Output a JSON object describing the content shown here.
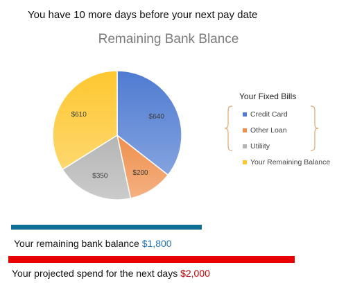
{
  "header": {
    "text": "You have 10 more days before your next pay date"
  },
  "chart_data": {
    "type": "pie",
    "title": "Remaining Bank Blance",
    "legend_title": "Your Fixed Bills",
    "legend_position": "right",
    "slices": [
      {
        "label": "Credit Card",
        "value": 640,
        "data_label": "$640",
        "color": "#4f7bd1"
      },
      {
        "label": "Other Loan",
        "value": 200,
        "data_label": "$200",
        "color": "#ef8f4d"
      },
      {
        "label": "Utiliity",
        "value": 350,
        "data_label": "$350",
        "color": "#b5b5b5"
      },
      {
        "label": "Your Remaining Balance",
        "value": 610,
        "data_label": "$610",
        "color": "#fec730"
      }
    ]
  },
  "balance": {
    "label": "Your remaining bank balance",
    "amount": "$1,800",
    "value": 1800,
    "bar_color": "#0f6e94"
  },
  "projected": {
    "label": "Your projected spend for the next days",
    "amount": "$2,000",
    "value": 2000,
    "bar_color": "#e80000"
  }
}
